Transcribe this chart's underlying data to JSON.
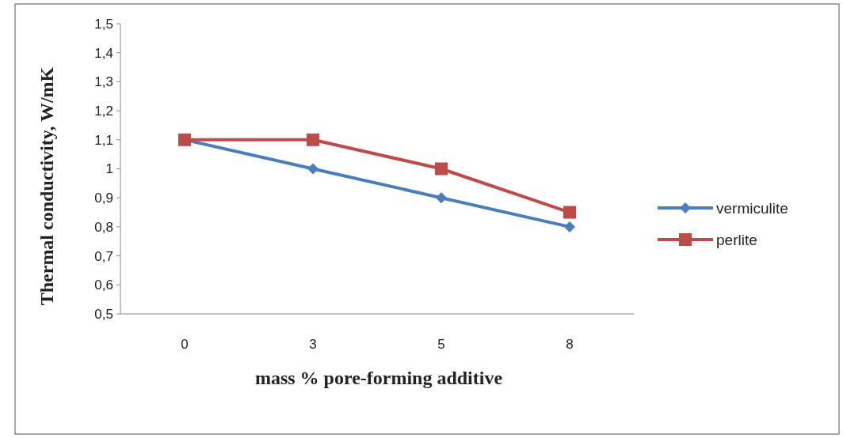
{
  "chart_data": {
    "type": "line",
    "xlabel": "mass % pore-forming  additive",
    "ylabel": "Thermal  conductivity,  W/mK",
    "categories": [
      "0",
      "3",
      "5",
      "8"
    ],
    "series": [
      {
        "name": "vermiculite",
        "color": "#4a7ebb",
        "values": [
          1.1,
          1.0,
          0.9,
          0.8
        ],
        "marker": "diamond"
      },
      {
        "name": "perlite",
        "color": "#be4b48",
        "values": [
          1.1,
          1.1,
          1.0,
          0.85
        ],
        "marker": "square"
      }
    ],
    "ylim": [
      0.5,
      1.5
    ],
    "yticks": [
      {
        "value": 0.5,
        "label": "0,5"
      },
      {
        "value": 0.6,
        "label": "0,6"
      },
      {
        "value": 0.7,
        "label": "0,7"
      },
      {
        "value": 0.8,
        "label": "0,8"
      },
      {
        "value": 0.9,
        "label": "0,9"
      },
      {
        "value": 1,
        "label": "1"
      },
      {
        "value": 1.1,
        "label": "1,1"
      },
      {
        "value": 1.2,
        "label": "1,2"
      },
      {
        "value": 1.3,
        "label": "1,3"
      },
      {
        "value": 1.4,
        "label": "1,4"
      },
      {
        "value": 1.5,
        "label": "1,5"
      }
    ],
    "grid": false,
    "legend": "right"
  }
}
